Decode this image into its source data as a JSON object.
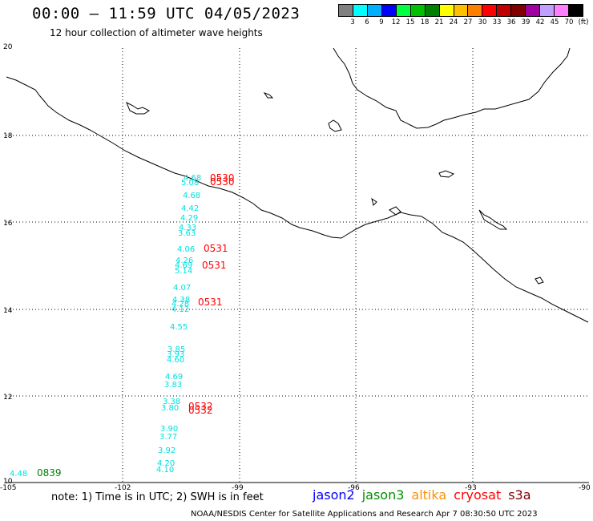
{
  "header": {
    "title": "00:00 – 11:59 UTC 04/05/2023",
    "subtitle": "12 hour collection of altimeter wave heights"
  },
  "legend": {
    "colors": [
      "#808080",
      "#00ffff",
      "#00b0ff",
      "#0000ff",
      "#00ff40",
      "#00c000",
      "#008000",
      "#ffff00",
      "#ffc000",
      "#ff8000",
      "#ff0000",
      "#c00000",
      "#800000",
      "#a000a0",
      "#c0a0ff",
      "#ff80ff",
      "#000000"
    ],
    "labels": [
      "3",
      "6",
      "9",
      "12",
      "15",
      "18",
      "21",
      "24",
      "27",
      "30",
      "33",
      "36",
      "39",
      "42",
      "45",
      "70",
      "(ft)"
    ]
  },
  "axes": {
    "lon_ticks": [
      "-105",
      "-102",
      "-99",
      "-96",
      "-93",
      "-90"
    ],
    "lat_ticks": [
      "20",
      "18",
      "16",
      "14",
      "12",
      "10"
    ]
  },
  "wave_heights": {
    "color": "#00e0e0",
    "values": [
      "4.68",
      "5.08",
      "4.68",
      "4.42",
      "4.29",
      "4.33",
      "3.63",
      "4.06",
      "4.26",
      "4.69",
      "5.14",
      "4.07",
      "4.38",
      "4.28",
      "4.12",
      "4.55",
      "3.85",
      "3.93",
      "4.60",
      "4.69",
      "3.83",
      "3.38",
      "3.80",
      "3.90",
      "3.77",
      "3.92",
      "4.20",
      "4.10",
      "4.48"
    ]
  },
  "pass_times": {
    "red_color": "#ff0000",
    "green_color": "#008000",
    "red": [
      "0530",
      "0530",
      "0531",
      "0531",
      "0531",
      "0532",
      "0532"
    ],
    "green": [
      "0839"
    ]
  },
  "footer": {
    "note": "note: 1) Time is in UTC; 2) SWH is in feet",
    "satellites": [
      {
        "name": "jason2",
        "color": "#0000ff"
      },
      {
        "name": "jason3",
        "color": "#009000"
      },
      {
        "name": "altika",
        "color": "#ff9000"
      },
      {
        "name": "cryosat",
        "color": "#ff0000"
      },
      {
        "name": "s3a",
        "color": "#800000"
      }
    ],
    "credit": "NOAA/NESDIS Center for Satellite Applications and Research   Apr  7 08:30:50 UTC 2023"
  }
}
